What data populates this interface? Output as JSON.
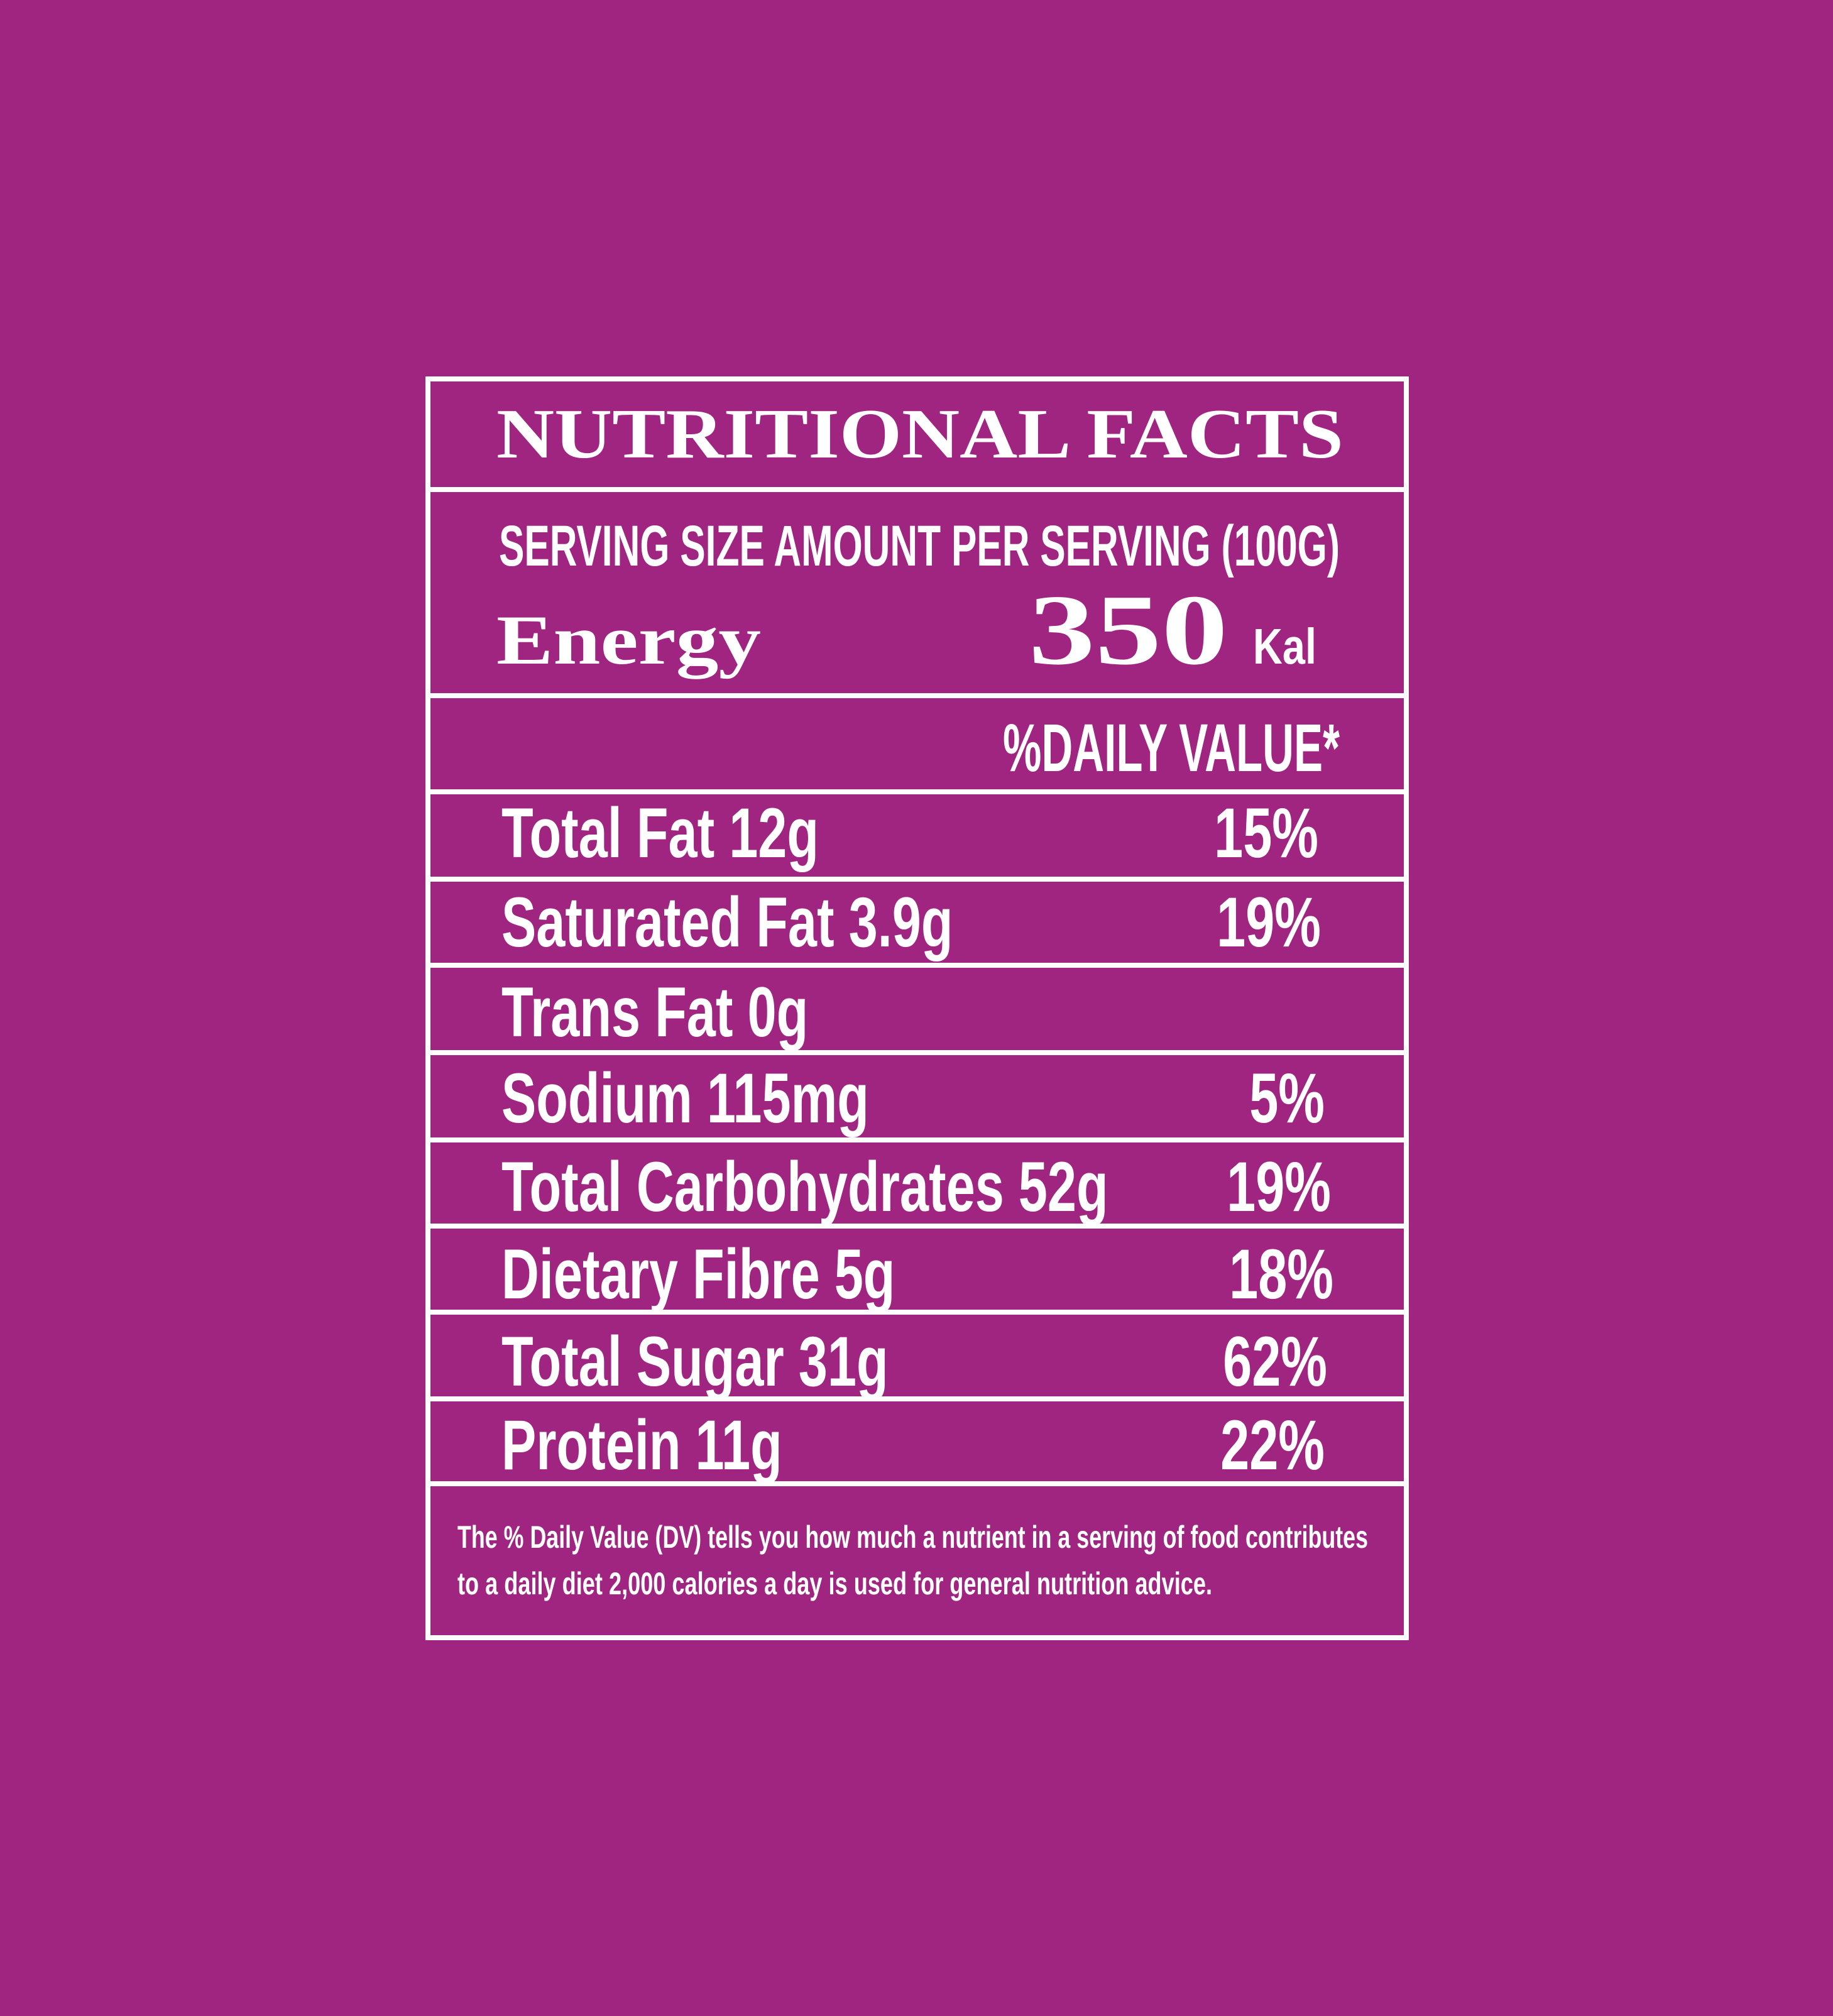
{
  "header": {
    "title": "NUTRITIONAL FACTS"
  },
  "serving_size": "SERVING SIZE AMOUNT PER SERVING (100G)",
  "energy": {
    "label": "Energy",
    "value": 350,
    "unit": "Kal"
  },
  "daily_value_header": "%DAILY VALUE*",
  "rows": [
    {
      "nutrient": "Total Fat 12g",
      "dv": "15%"
    },
    {
      "nutrient": "Saturated Fat 3.9g",
      "dv": "19%"
    },
    {
      "nutrient": "Trans Fat 0g"
    },
    {
      "nutrient": "Sodium 115mg",
      "dv": "5%"
    },
    {
      "nutrient": "Total Carbohydrates 52g",
      "dv": "19%"
    },
    {
      "nutrient": "Dietary Fibre 5g",
      "dv": "18%"
    },
    {
      "nutrient": "Total Sugar 31g",
      "dv": "62%"
    },
    {
      "nutrient": "Protein 11g",
      "dv": "22%"
    }
  ],
  "footnote": [
    "The % Daily Value (DV) tells you how much a nutrient in a serving of food contributes",
    "to a daily diet 2,000 calories a day is used for general nutrition advice."
  ]
}
